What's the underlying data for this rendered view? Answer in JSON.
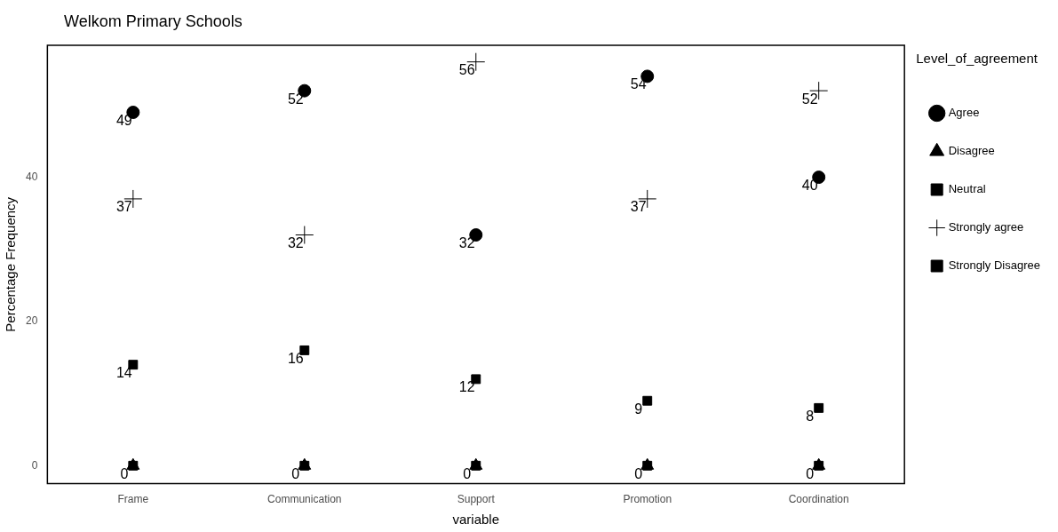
{
  "chart_data": {
    "type": "scatter",
    "title": "Welkom Primary Schools",
    "xlabel": "variable",
    "ylabel": "Percentage Frequency",
    "legend_title": "Level_of_agreement",
    "categories": [
      "Frame",
      "Communication",
      "Support",
      "Promotion",
      "Coordination"
    ],
    "series": [
      {
        "name": "Agree",
        "color": "#000000",
        "marker": "circle",
        "values": [
          49,
          52,
          32,
          54,
          40
        ],
        "value_labels": [
          "49",
          "52",
          "32",
          "54",
          "40"
        ]
      },
      {
        "name": "Disagree",
        "color": "#000000",
        "marker": "triangle",
        "values": [
          0,
          0,
          0,
          0,
          0
        ],
        "value_labels": [
          "0",
          "0",
          "0",
          "0",
          "0"
        ]
      },
      {
        "name": "Neutral",
        "color": "#000000",
        "marker": "square",
        "values": [
          14,
          16,
          12,
          9,
          8
        ],
        "value_labels": [
          "14",
          "16",
          "12",
          "9",
          "8"
        ]
      },
      {
        "name": "Strongly agree",
        "color": "#000000",
        "marker": "cross",
        "values": [
          37,
          32,
          56,
          37,
          52
        ],
        "value_labels": [
          "37",
          "32",
          "56",
          "37",
          "52"
        ]
      },
      {
        "name": "Strongly Disagree",
        "color": "#000000",
        "marker": "square",
        "values": [
          0,
          0,
          0,
          0,
          0
        ],
        "value_labels": [
          null,
          null,
          null,
          null,
          null
        ]
      }
    ],
    "ylim": [
      -2.5,
      58.3
    ],
    "yticks": [
      0,
      20,
      40
    ],
    "grid": false,
    "legend": "right"
  }
}
